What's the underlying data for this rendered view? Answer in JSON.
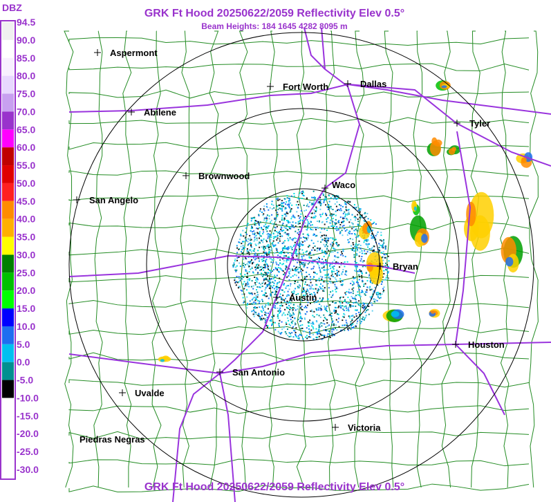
{
  "header": {
    "title": "GRK Ft Hood 20250622/2059 Reflectivity Elev 0.5°",
    "subtitle": "Beam Heights: 184 1645 4282 8095 m",
    "footer": "GRK Ft Hood 20250622/2059 Reflectivity Elev 0.5°"
  },
  "legend": {
    "unit": "DBZ",
    "labels": [
      "94.5",
      "90.0",
      "85.0",
      "80.0",
      "75.0",
      "70.0",
      "65.0",
      "60.0",
      "55.0",
      "50.0",
      "45.0",
      "40.0",
      "35.0",
      "30.0",
      "25.0",
      "20.0",
      "15.0",
      "10.0",
      "5.0",
      "0.0",
      "-5.0",
      "-10.0",
      "-15.0",
      "-20.0",
      "-25.0",
      "-30.0"
    ]
  },
  "cities": [
    {
      "name": "Aspermont"
    },
    {
      "name": "Fort Worth"
    },
    {
      "name": "Dallas"
    },
    {
      "name": "Abilene"
    },
    {
      "name": "Tyler"
    },
    {
      "name": "Brownwood"
    },
    {
      "name": "Waco"
    },
    {
      "name": "San Angelo"
    },
    {
      "name": "Bryan"
    },
    {
      "name": "Austin"
    },
    {
      "name": "Houston"
    },
    {
      "name": "San Antonio"
    },
    {
      "name": "Uvalde"
    },
    {
      "name": "Victoria"
    },
    {
      "name": "Piedras Negras"
    }
  ]
}
